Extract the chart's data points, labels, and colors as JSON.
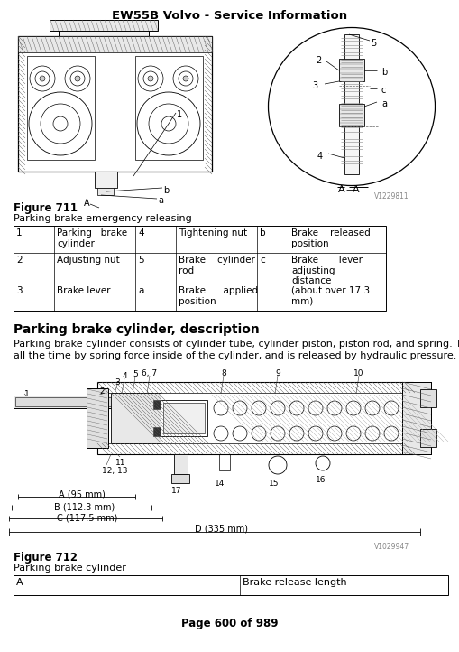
{
  "title": "EW55B Volvo - Service Information",
  "figure711_label": "Figure 711",
  "figure711_subtitle": "Parking brake emergency releasing",
  "figure712_label": "Figure 712",
  "figure712_subtitle": "Parking brake cylinder",
  "section_title": "Parking brake cylinder, description",
  "section_body1": "Parking brake cylinder consists of cylinder tube, cylinder piston, piston rod, and spring. The brake operates",
  "section_body2": "all the time by spring force inside of the cylinder, and is released by hydraulic pressure.",
  "table711_rows": [
    [
      "1",
      "Parking   brake\ncylinder",
      "4",
      "Tightening nut",
      "b",
      "Brake    released\nposition"
    ],
    [
      "2",
      "Adjusting nut",
      "5",
      "Brake    cylinder\nrod",
      "c",
      "Brake       lever\nadjusting\ndistance"
    ],
    [
      "3",
      "Brake lever",
      "a",
      "Brake      applied\nposition",
      "",
      "(about over 17.3\nmm)"
    ]
  ],
  "table712_rows": [
    [
      "A",
      "Brake release length"
    ]
  ],
  "watermark711": "V1229811",
  "watermark712": "V1029947",
  "page": "Page 600 of 989",
  "bg_color": "#ffffff"
}
